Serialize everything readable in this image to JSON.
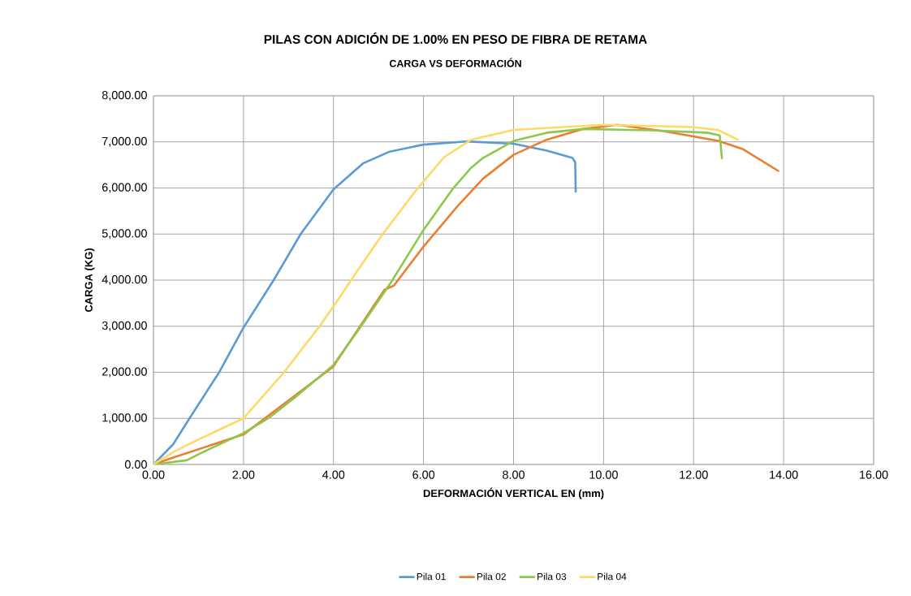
{
  "chart_data": {
    "type": "line",
    "title": "PILAS CON ADICIÓN DE 1.00% EN PESO DE FIBRA DE RETAMA",
    "subtitle": "CARGA VS DEFORMACIÓN",
    "xlabel": "DEFORMACIÓN VERTICAL EN (mm)",
    "ylabel": "CARGA (KG)",
    "xlim": [
      0,
      16
    ],
    "ylim": [
      0,
      8000
    ],
    "xticks": [
      {
        "value": 0,
        "label": "0.00"
      },
      {
        "value": 2,
        "label": "2.00"
      },
      {
        "value": 4,
        "label": "4.00"
      },
      {
        "value": 6,
        "label": "6.00"
      },
      {
        "value": 8,
        "label": "8.00"
      },
      {
        "value": 10,
        "label": "10.00"
      },
      {
        "value": 12,
        "label": "12.00"
      },
      {
        "value": 14,
        "label": "14.00"
      },
      {
        "value": 16,
        "label": "16.00"
      }
    ],
    "yticks": [
      {
        "value": 0,
        "label": "0.00"
      },
      {
        "value": 1000,
        "label": "1,000.00"
      },
      {
        "value": 2000,
        "label": "2,000.00"
      },
      {
        "value": 3000,
        "label": "3,000.00"
      },
      {
        "value": 4000,
        "label": "4,000.00"
      },
      {
        "value": 5000,
        "label": "5,000.00"
      },
      {
        "value": 6000,
        "label": "6,000.00"
      },
      {
        "value": 7000,
        "label": "7,000.00"
      },
      {
        "value": 8000,
        "label": "8,000.00"
      }
    ],
    "grid": true,
    "legend": "bottom",
    "marker": "none",
    "line_style": "solid",
    "series": [
      {
        "name": "Pila 01",
        "color": "#5b9bd5",
        "x": [
          0,
          0.44,
          0.8,
          1.46,
          2.0,
          2.67,
          3.27,
          4.0,
          4.65,
          5.25,
          6.0,
          6.94,
          8.0,
          8.74,
          9.31,
          9.37,
          9.38
        ],
        "values": [
          0,
          440,
          1000,
          2000,
          2970,
          4000,
          5000,
          5970,
          6530,
          6790,
          6940,
          7010,
          6960,
          6810,
          6650,
          6560,
          5920
        ]
      },
      {
        "name": "Pila 02",
        "color": "#ed7d31",
        "x": [
          0,
          0.44,
          2.0,
          3.99,
          5.13,
          5.34,
          6.0,
          6.76,
          7.32,
          8.0,
          8.74,
          9.55,
          10.3,
          11.36,
          12.55,
          13.1,
          13.88
        ],
        "values": [
          0,
          150,
          650,
          2120,
          3790,
          3880,
          4730,
          5610,
          6200,
          6720,
          7050,
          7280,
          7370,
          7230,
          7020,
          6840,
          6370
        ]
      },
      {
        "name": "Pila 03",
        "color": "#8cc84b",
        "x": [
          0,
          0.74,
          1.04,
          2.0,
          2.55,
          3.2,
          3.99,
          4.59,
          5.25,
          6.0,
          6.64,
          7.06,
          7.32,
          8.0,
          8.74,
          9.55,
          11.05,
          12.3,
          12.58,
          12.63
        ],
        "values": [
          0,
          90,
          240,
          680,
          1000,
          1500,
          2150,
          2970,
          3910,
          5090,
          5970,
          6440,
          6650,
          7020,
          7200,
          7280,
          7250,
          7200,
          7140,
          6650
        ]
      },
      {
        "name": "Pila 04",
        "color": "#ffd966",
        "x": [
          0,
          0.44,
          1.04,
          2.0,
          2.9,
          3.69,
          4.05,
          4.41,
          5.07,
          5.85,
          6.46,
          7.06,
          8.0,
          9.97,
          11.97,
          12.54,
          12.98
        ],
        "values": [
          0,
          270,
          560,
          1000,
          2000,
          3000,
          3500,
          4030,
          4970,
          5970,
          6670,
          7050,
          7260,
          7370,
          7320,
          7260,
          7050
        ]
      }
    ]
  }
}
